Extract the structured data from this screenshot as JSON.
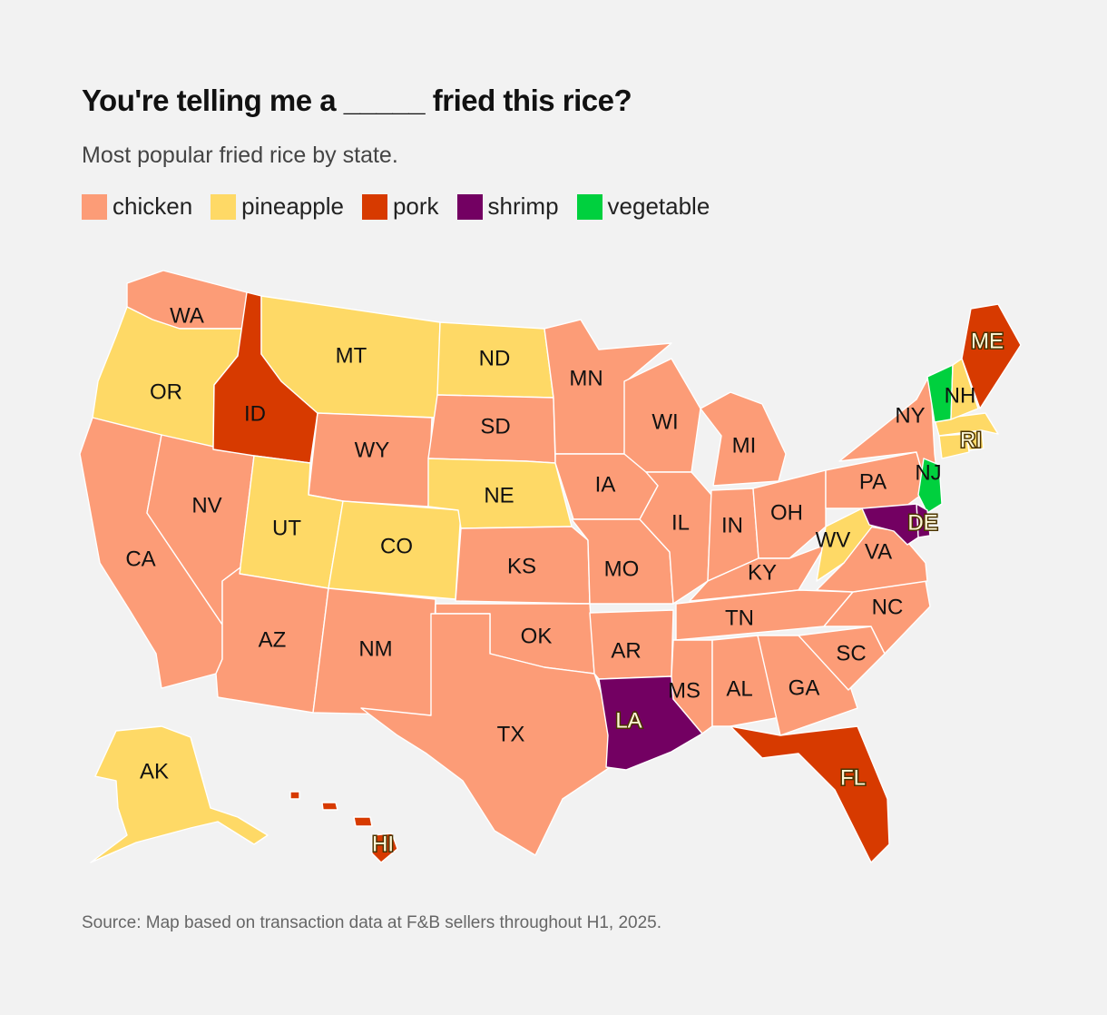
{
  "title": "You're telling me a _____ fried this rice?",
  "subtitle": "Most popular fried rice by state.",
  "legend": [
    {
      "label": "chicken",
      "color": "#fc9c77"
    },
    {
      "label": "pineapple",
      "color": "#fed966"
    },
    {
      "label": "pork",
      "color": "#d73a00"
    },
    {
      "label": "shrimp",
      "color": "#730062"
    },
    {
      "label": "vegetable",
      "color": "#00d03e"
    }
  ],
  "source": "Source: Map based on transaction data at F&B sellers throughout H1, 2025.",
  "states": [
    {
      "abbr": "WA",
      "rice": "chicken"
    },
    {
      "abbr": "OR",
      "rice": "pineapple"
    },
    {
      "abbr": "CA",
      "rice": "chicken"
    },
    {
      "abbr": "NV",
      "rice": "chicken"
    },
    {
      "abbr": "ID",
      "rice": "pork"
    },
    {
      "abbr": "MT",
      "rice": "pineapple"
    },
    {
      "abbr": "WY",
      "rice": "chicken"
    },
    {
      "abbr": "UT",
      "rice": "pineapple"
    },
    {
      "abbr": "CO",
      "rice": "pineapple"
    },
    {
      "abbr": "AZ",
      "rice": "chicken"
    },
    {
      "abbr": "NM",
      "rice": "chicken"
    },
    {
      "abbr": "ND",
      "rice": "pineapple"
    },
    {
      "abbr": "SD",
      "rice": "chicken"
    },
    {
      "abbr": "NE",
      "rice": "pineapple"
    },
    {
      "abbr": "KS",
      "rice": "chicken"
    },
    {
      "abbr": "OK",
      "rice": "chicken"
    },
    {
      "abbr": "TX",
      "rice": "chicken"
    },
    {
      "abbr": "MN",
      "rice": "chicken"
    },
    {
      "abbr": "IA",
      "rice": "chicken"
    },
    {
      "abbr": "MO",
      "rice": "chicken"
    },
    {
      "abbr": "AR",
      "rice": "chicken"
    },
    {
      "abbr": "LA",
      "rice": "shrimp"
    },
    {
      "abbr": "WI",
      "rice": "chicken"
    },
    {
      "abbr": "IL",
      "rice": "chicken"
    },
    {
      "abbr": "MI",
      "rice": "chicken"
    },
    {
      "abbr": "IN",
      "rice": "chicken"
    },
    {
      "abbr": "OH",
      "rice": "chicken"
    },
    {
      "abbr": "KY",
      "rice": "chicken"
    },
    {
      "abbr": "TN",
      "rice": "chicken"
    },
    {
      "abbr": "MS",
      "rice": "chicken"
    },
    {
      "abbr": "AL",
      "rice": "chicken"
    },
    {
      "abbr": "GA",
      "rice": "chicken"
    },
    {
      "abbr": "FL",
      "rice": "pork"
    },
    {
      "abbr": "SC",
      "rice": "chicken"
    },
    {
      "abbr": "NC",
      "rice": "chicken"
    },
    {
      "abbr": "VA",
      "rice": "chicken"
    },
    {
      "abbr": "WV",
      "rice": "pineapple"
    },
    {
      "abbr": "PA",
      "rice": "chicken"
    },
    {
      "abbr": "NY",
      "rice": "chicken"
    },
    {
      "abbr": "NJ",
      "rice": "vegetable"
    },
    {
      "abbr": "DE",
      "rice": "shrimp"
    },
    {
      "abbr": "MD",
      "rice": "shrimp"
    },
    {
      "abbr": "CT",
      "rice": "pineapple"
    },
    {
      "abbr": "RI",
      "rice": "pineapple"
    },
    {
      "abbr": "MA",
      "rice": "pineapple"
    },
    {
      "abbr": "VT",
      "rice": "vegetable"
    },
    {
      "abbr": "NH",
      "rice": "pineapple"
    },
    {
      "abbr": "ME",
      "rice": "pork"
    },
    {
      "abbr": "AK",
      "rice": "pineapple"
    },
    {
      "abbr": "HI",
      "rice": "pork"
    }
  ]
}
